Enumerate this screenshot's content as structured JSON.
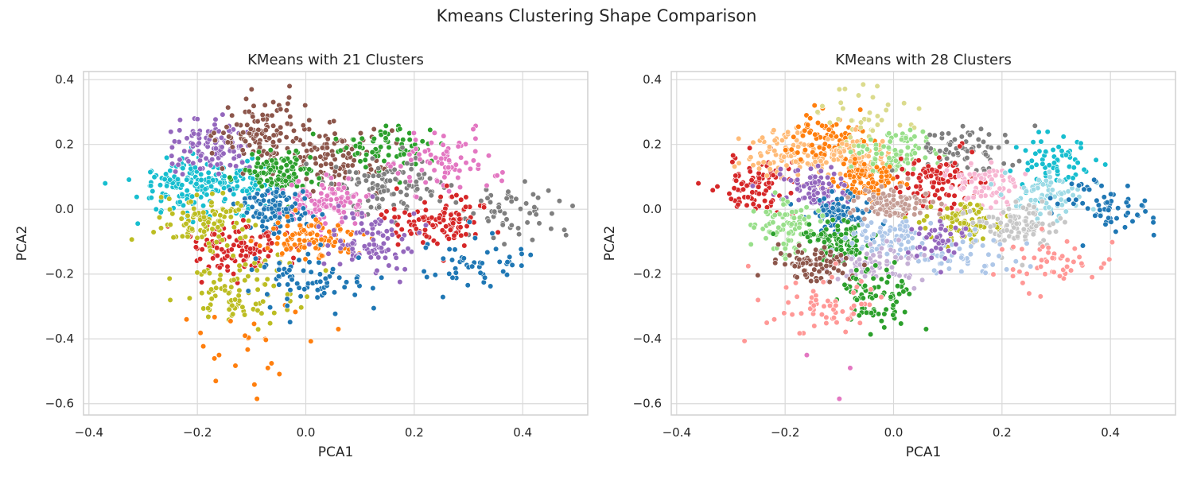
{
  "figure": {
    "suptitle": "Kmeans Clustering Shape Comparison"
  },
  "chart_data": [
    {
      "type": "scatter",
      "title": "KMeans with 21 Clusters",
      "xlabel": "PCA1",
      "ylabel": "PCA2",
      "xlim": [
        -0.41,
        0.52
      ],
      "ylim": [
        -0.635,
        0.425
      ],
      "xticks": [
        -0.4,
        -0.2,
        0.0,
        0.2,
        0.4
      ],
      "xtick_labels": [
        "−0.4",
        "−0.2",
        "0.0",
        "0.2",
        "0.4"
      ],
      "yticks": [
        -0.6,
        -0.4,
        -0.2,
        0.0,
        0.2,
        0.4
      ],
      "ytick_labels": [
        "−0.6",
        "−0.4",
        "−0.2",
        "0.0",
        "0.2",
        "0.4"
      ],
      "grid": true,
      "legend": "none",
      "clusters": [
        {
          "color": "#17becf",
          "center": [
            -0.23,
            0.08
          ],
          "spread": [
            0.04,
            0.045
          ],
          "n": 110
        },
        {
          "color": "#17becf",
          "center": [
            -0.14,
            0.075
          ],
          "spread": [
            0.04,
            0.035
          ],
          "n": 100
        },
        {
          "color": "#9467bd",
          "center": [
            -0.17,
            0.19
          ],
          "spread": [
            0.045,
            0.04
          ],
          "n": 110
        },
        {
          "color": "#8c564b",
          "center": [
            -0.08,
            0.24
          ],
          "spread": [
            0.04,
            0.05
          ],
          "n": 110
        },
        {
          "color": "#8c564b",
          "center": [
            0.05,
            0.16
          ],
          "spread": [
            0.05,
            0.05
          ],
          "n": 110
        },
        {
          "color": "#2ca02c",
          "center": [
            -0.05,
            0.11
          ],
          "spread": [
            0.035,
            0.035
          ],
          "n": 110
        },
        {
          "color": "#2ca02c",
          "center": [
            0.16,
            0.2
          ],
          "spread": [
            0.05,
            0.035
          ],
          "n": 70
        },
        {
          "color": "#7f7f7f",
          "center": [
            0.15,
            0.07
          ],
          "spread": [
            0.05,
            0.045
          ],
          "n": 110
        },
        {
          "color": "#7f7f7f",
          "center": [
            0.38,
            0.0
          ],
          "spread": [
            0.045,
            0.045
          ],
          "n": 60
        },
        {
          "color": "#e377c2",
          "center": [
            0.04,
            0.02
          ],
          "spread": [
            0.04,
            0.035
          ],
          "n": 110
        },
        {
          "color": "#e377c2",
          "center": [
            0.26,
            0.14
          ],
          "spread": [
            0.05,
            0.045
          ],
          "n": 80
        },
        {
          "color": "#1f77b4",
          "center": [
            -0.06,
            0.0
          ],
          "spread": [
            0.035,
            0.035
          ],
          "n": 110
        },
        {
          "color": "#d62728",
          "center": [
            0.24,
            -0.03
          ],
          "spread": [
            0.05,
            0.04
          ],
          "n": 110
        },
        {
          "color": "#d62728",
          "center": [
            -0.12,
            -0.12
          ],
          "spread": [
            0.05,
            0.04
          ],
          "n": 110
        },
        {
          "color": "#bcbd22",
          "center": [
            -0.18,
            -0.04
          ],
          "spread": [
            0.045,
            0.045
          ],
          "n": 100
        },
        {
          "color": "#bcbd22",
          "center": [
            -0.12,
            -0.26
          ],
          "spread": [
            0.05,
            0.05
          ],
          "n": 90
        },
        {
          "color": "#ff7f0e",
          "center": [
            0.01,
            -0.09
          ],
          "spread": [
            0.045,
            0.03
          ],
          "n": 100
        },
        {
          "color": "#ff7f0e",
          "center": [
            -0.1,
            -0.43
          ],
          "spread": [
            0.05,
            0.07
          ],
          "n": 20
        },
        {
          "color": "#9467bd",
          "center": [
            0.11,
            -0.09
          ],
          "spread": [
            0.045,
            0.05
          ],
          "n": 90
        },
        {
          "color": "#1f77b4",
          "center": [
            0.0,
            -0.22
          ],
          "spread": [
            0.05,
            0.04
          ],
          "n": 70
        },
        {
          "color": "#1f77b4",
          "center": [
            0.32,
            -0.17
          ],
          "spread": [
            0.06,
            0.04
          ],
          "n": 50
        }
      ],
      "extra_points": [
        {
          "x": -0.37,
          "y": 0.08,
          "color": "#17becf"
        },
        {
          "x": 0.48,
          "y": -0.08,
          "color": "#7f7f7f"
        },
        {
          "x": -0.09,
          "y": -0.585,
          "color": "#ff7f0e"
        },
        {
          "x": -0.16,
          "y": -0.45,
          "color": "#ff7f0e"
        },
        {
          "x": -0.07,
          "y": -0.49,
          "color": "#ff7f0e"
        },
        {
          "x": -0.25,
          "y": -0.28,
          "color": "#bcbd22"
        },
        {
          "x": -0.22,
          "y": -0.34,
          "color": "#ff7f0e"
        },
        {
          "x": 0.06,
          "y": -0.37,
          "color": "#ff7f0e"
        },
        {
          "x": -0.03,
          "y": 0.38,
          "color": "#8c564b"
        },
        {
          "x": -0.1,
          "y": 0.37,
          "color": "#8c564b"
        }
      ]
    },
    {
      "type": "scatter",
      "title": "KMeans with 28 Clusters",
      "xlabel": "PCA1",
      "ylabel": "PCA2",
      "xlim": [
        -0.41,
        0.52
      ],
      "ylim": [
        -0.635,
        0.425
      ],
      "xticks": [
        -0.4,
        -0.2,
        0.0,
        0.2,
        0.4
      ],
      "xtick_labels": [
        "−0.4",
        "−0.2",
        "0.0",
        "0.2",
        "0.4"
      ],
      "yticks": [
        -0.6,
        -0.4,
        -0.2,
        0.0,
        0.2,
        0.4
      ],
      "ytick_labels": [
        "−0.6",
        "−0.4",
        "−0.2",
        "0.0",
        "0.2",
        "0.4"
      ],
      "grid": true,
      "legend": "none",
      "clusters": [
        {
          "color": "#d62728",
          "center": [
            -0.25,
            0.07
          ],
          "spread": [
            0.035,
            0.045
          ],
          "n": 90
        },
        {
          "color": "#ffbb78",
          "center": [
            -0.17,
            0.17
          ],
          "spread": [
            0.05,
            0.04
          ],
          "n": 110
        },
        {
          "color": "#ff7f0e",
          "center": [
            -0.12,
            0.23
          ],
          "spread": [
            0.035,
            0.04
          ],
          "n": 70
        },
        {
          "color": "#dbdb8d",
          "center": [
            -0.05,
            0.28
          ],
          "spread": [
            0.04,
            0.05
          ],
          "n": 40
        },
        {
          "color": "#ffbb78",
          "center": [
            -0.07,
            0.15
          ],
          "spread": [
            0.04,
            0.03
          ],
          "n": 70
        },
        {
          "color": "#98df8a",
          "center": [
            0.0,
            0.17
          ],
          "spread": [
            0.04,
            0.035
          ],
          "n": 90
        },
        {
          "color": "#7f7f7f",
          "center": [
            0.14,
            0.19
          ],
          "spread": [
            0.05,
            0.035
          ],
          "n": 70
        },
        {
          "color": "#d62728",
          "center": [
            0.08,
            0.09
          ],
          "spread": [
            0.035,
            0.035
          ],
          "n": 100
        },
        {
          "color": "#f7b6d2",
          "center": [
            0.17,
            0.07
          ],
          "spread": [
            0.035,
            0.035
          ],
          "n": 80
        },
        {
          "color": "#17becf",
          "center": [
            0.29,
            0.14
          ],
          "spread": [
            0.04,
            0.04
          ],
          "n": 70
        },
        {
          "color": "#9edae5",
          "center": [
            0.28,
            0.04
          ],
          "spread": [
            0.04,
            0.035
          ],
          "n": 70
        },
        {
          "color": "#1f77b4",
          "center": [
            0.38,
            0.0
          ],
          "spread": [
            0.04,
            0.04
          ],
          "n": 60
        },
        {
          "color": "#ff7f0e",
          "center": [
            -0.05,
            0.08
          ],
          "spread": [
            0.035,
            0.03
          ],
          "n": 100
        },
        {
          "color": "#9467bd",
          "center": [
            -0.14,
            0.06
          ],
          "spread": [
            0.03,
            0.03
          ],
          "n": 90
        },
        {
          "color": "#1f77b4",
          "center": [
            -0.1,
            -0.01
          ],
          "spread": [
            0.03,
            0.03
          ],
          "n": 90
        },
        {
          "color": "#c49c94",
          "center": [
            0.0,
            0.02
          ],
          "spread": [
            0.035,
            0.03
          ],
          "n": 100
        },
        {
          "color": "#bcbd22",
          "center": [
            0.13,
            -0.04
          ],
          "spread": [
            0.035,
            0.03
          ],
          "n": 90
        },
        {
          "color": "#c7c7c7",
          "center": [
            0.23,
            -0.05
          ],
          "spread": [
            0.04,
            0.04
          ],
          "n": 100
        },
        {
          "color": "#98df8a",
          "center": [
            -0.2,
            -0.05
          ],
          "spread": [
            0.035,
            0.045
          ],
          "n": 90
        },
        {
          "color": "#2ca02c",
          "center": [
            -0.1,
            -0.1
          ],
          "spread": [
            0.035,
            0.03
          ],
          "n": 90
        },
        {
          "color": "#aec7e8",
          "center": [
            0.0,
            -0.09
          ],
          "spread": [
            0.04,
            0.035
          ],
          "n": 80
        },
        {
          "color": "#aec7e8",
          "center": [
            0.13,
            -0.15
          ],
          "spread": [
            0.05,
            0.035
          ],
          "n": 50
        },
        {
          "color": "#c5b0d5",
          "center": [
            -0.03,
            -0.17
          ],
          "spread": [
            0.04,
            0.035
          ],
          "n": 70
        },
        {
          "color": "#8c564b",
          "center": [
            -0.15,
            -0.17
          ],
          "spread": [
            0.035,
            0.03
          ],
          "n": 80
        },
        {
          "color": "#2ca02c",
          "center": [
            -0.04,
            -0.27
          ],
          "spread": [
            0.035,
            0.045
          ],
          "n": 80
        },
        {
          "color": "#ff9896",
          "center": [
            -0.13,
            -0.3
          ],
          "spread": [
            0.05,
            0.05
          ],
          "n": 60
        },
        {
          "color": "#ff9896",
          "center": [
            0.3,
            -0.17
          ],
          "spread": [
            0.05,
            0.04
          ],
          "n": 50
        },
        {
          "color": "#9467bd",
          "center": [
            0.08,
            -0.1
          ],
          "spread": [
            0.03,
            0.03
          ],
          "n": 40
        }
      ],
      "extra_points": [
        {
          "x": -0.36,
          "y": 0.08,
          "color": "#d62728"
        },
        {
          "x": 0.48,
          "y": -0.08,
          "color": "#1f77b4"
        },
        {
          "x": -0.1,
          "y": -0.585,
          "color": "#e377c2"
        },
        {
          "x": -0.16,
          "y": -0.45,
          "color": "#e377c2"
        },
        {
          "x": -0.08,
          "y": -0.49,
          "color": "#e377c2"
        },
        {
          "x": -0.25,
          "y": -0.28,
          "color": "#ff9896"
        },
        {
          "x": -0.22,
          "y": -0.34,
          "color": "#ff9896"
        },
        {
          "x": 0.06,
          "y": -0.37,
          "color": "#2ca02c"
        },
        {
          "x": -0.03,
          "y": 0.38,
          "color": "#dbdb8d"
        },
        {
          "x": -0.1,
          "y": 0.37,
          "color": "#dbdb8d"
        },
        {
          "x": 0.25,
          "y": -0.26,
          "color": "#ff9896"
        }
      ]
    }
  ]
}
